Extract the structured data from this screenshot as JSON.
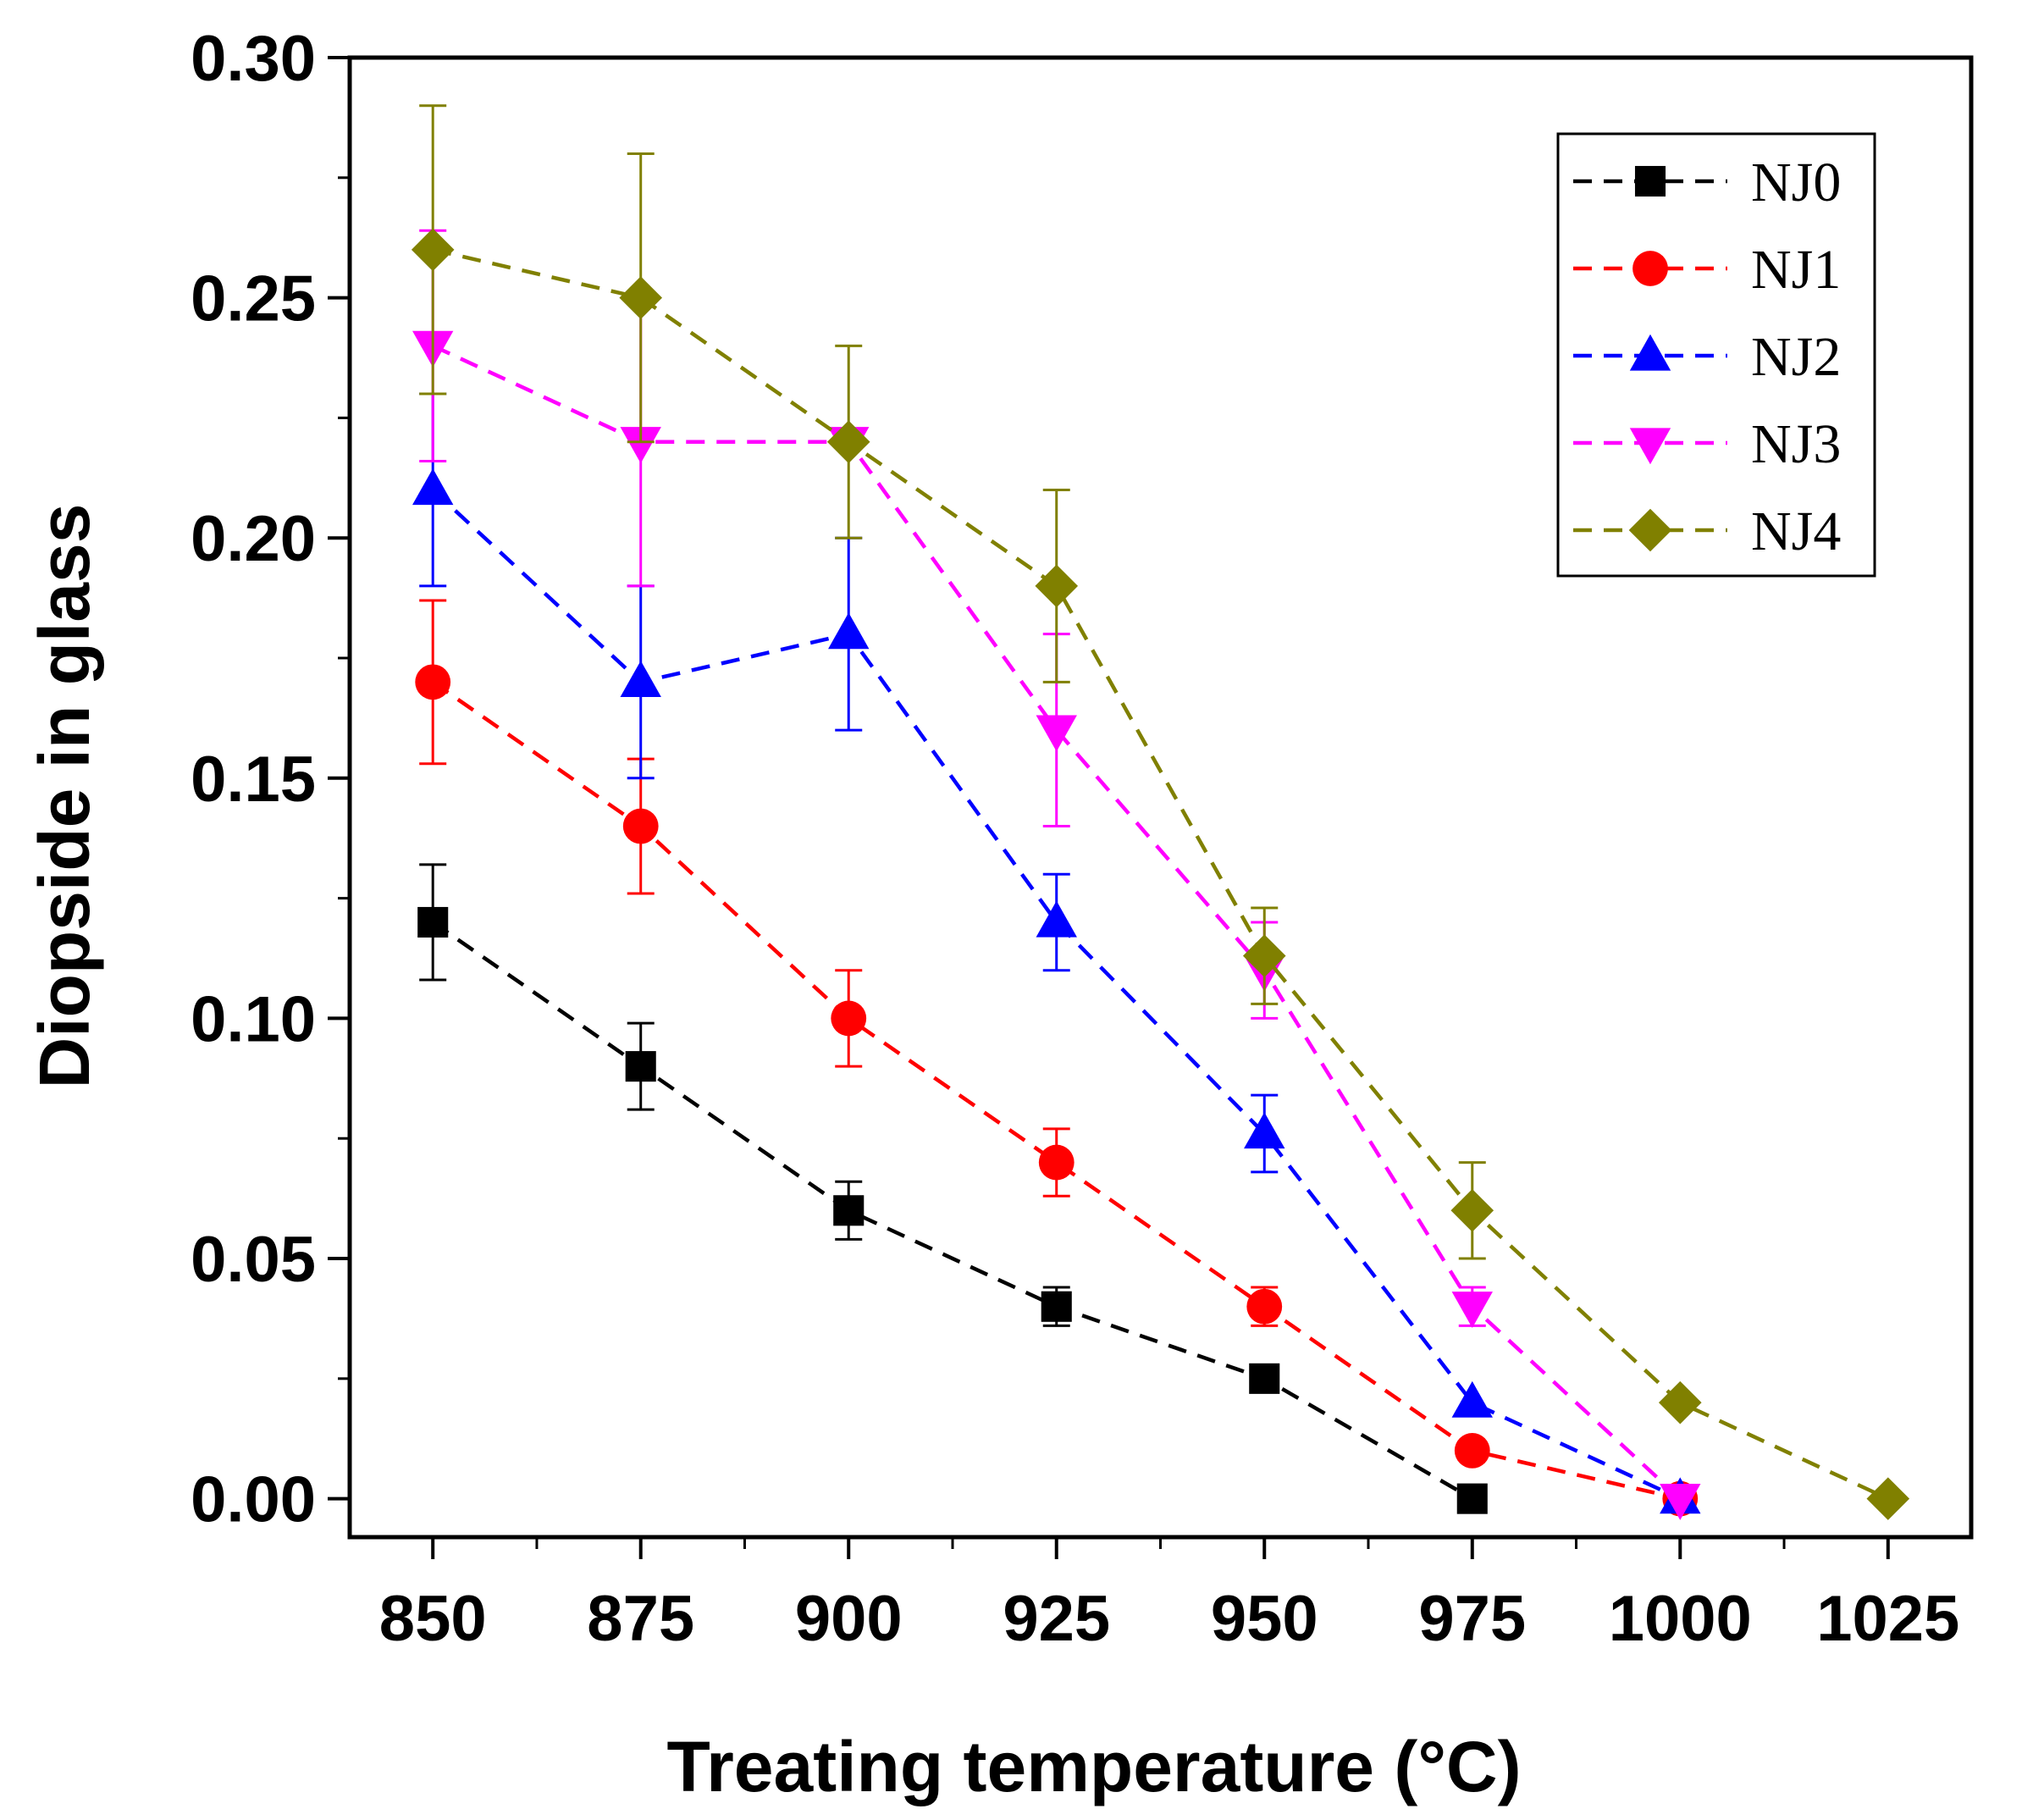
{
  "chart_data": {
    "type": "line",
    "title": "",
    "xlabel": "Treating temperature (°C)",
    "ylabel": "Diopside in glass",
    "xlim": [
      840,
      1035
    ],
    "ylim": [
      -0.008,
      0.3
    ],
    "xticks": [
      850,
      875,
      900,
      925,
      950,
      975,
      1000,
      1025
    ],
    "xtick_labels": [
      "850",
      "875",
      "900",
      "925",
      "950",
      "975",
      "1000",
      "1025"
    ],
    "yticks": [
      0.0,
      0.05,
      0.1,
      0.15,
      0.2,
      0.25,
      0.3
    ],
    "ytick_labels": [
      "0.00",
      "0.05",
      "0.10",
      "0.15",
      "0.20",
      "0.25",
      "0.30"
    ],
    "grid": false,
    "legend_position": "top-right",
    "series": [
      {
        "name": "NJ0",
        "color": "#000000",
        "marker": "square",
        "x": [
          850,
          875,
          900,
          925,
          950,
          975
        ],
        "y": [
          0.12,
          0.09,
          0.06,
          0.04,
          0.025,
          0.0
        ],
        "err": [
          0.012,
          0.009,
          0.006,
          0.004,
          0.0,
          0.0
        ]
      },
      {
        "name": "NJ1",
        "color": "#ff0000",
        "marker": "circle",
        "x": [
          850,
          875,
          900,
          925,
          950,
          975,
          1000
        ],
        "y": [
          0.17,
          0.14,
          0.1,
          0.07,
          0.04,
          0.01,
          0.0
        ],
        "err": [
          0.017,
          0.014,
          0.01,
          0.007,
          0.004,
          0.0,
          0.0
        ]
      },
      {
        "name": "NJ2",
        "color": "#0000ff",
        "marker": "triangle-up",
        "x": [
          850,
          875,
          900,
          925,
          950,
          975,
          1000
        ],
        "y": [
          0.21,
          0.17,
          0.18,
          0.12,
          0.076,
          0.02,
          0.0
        ],
        "err": [
          0.02,
          0.02,
          0.02,
          0.01,
          0.008,
          0.0,
          0.0
        ]
      },
      {
        "name": "NJ3",
        "color": "#ff00ff",
        "marker": "triangle-down",
        "x": [
          850,
          875,
          900,
          925,
          950,
          975,
          1000
        ],
        "y": [
          0.24,
          0.22,
          0.22,
          0.16,
          0.11,
          0.04,
          0.0
        ],
        "err": [
          0.024,
          0.03,
          0.0,
          0.02,
          0.01,
          0.004,
          0.0
        ]
      },
      {
        "name": "NJ4",
        "color": "#808000",
        "marker": "diamond",
        "x": [
          850,
          875,
          900,
          925,
          950,
          975,
          1000,
          1025
        ],
        "y": [
          0.26,
          0.25,
          0.22,
          0.19,
          0.113,
          0.06,
          0.02,
          0.0
        ],
        "err": [
          0.03,
          0.03,
          0.02,
          0.02,
          0.01,
          0.01,
          0.0,
          0.0
        ]
      }
    ]
  }
}
